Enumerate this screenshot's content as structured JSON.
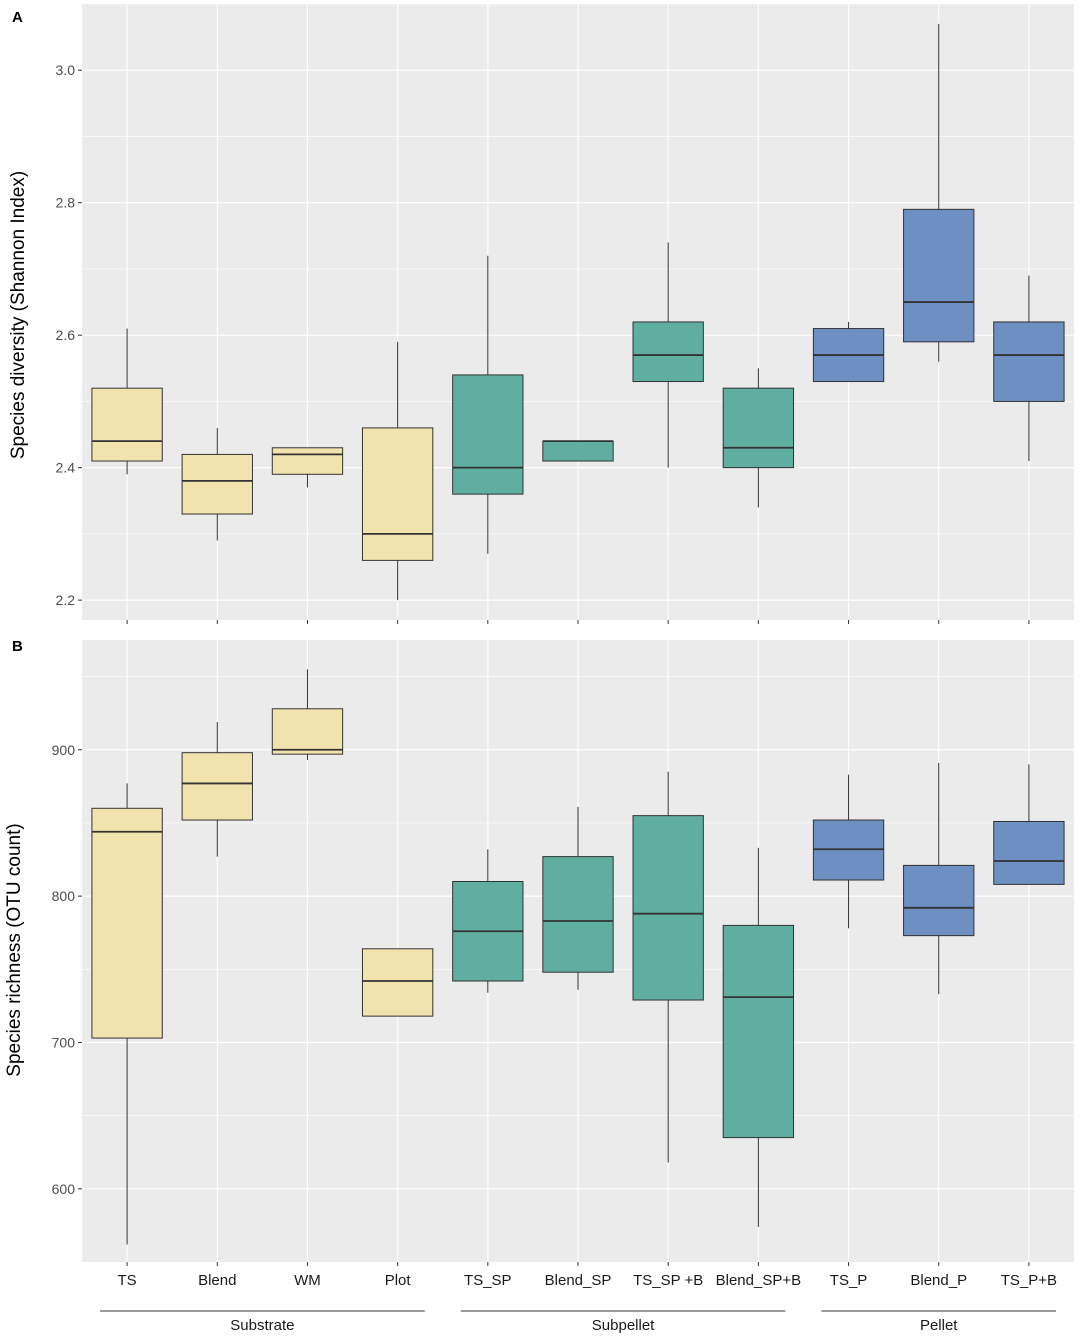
{
  "colors": {
    "substrate": "#f0e3ae",
    "subpellet": "#5fae9f",
    "pellet": "#6e8fc2",
    "panel_bg": "#ebebeb",
    "grid": "#ffffff",
    "box_line": "#333333"
  },
  "categories": [
    "TS",
    "Blend",
    "WM",
    "Plot",
    "TS_SP",
    "Blend_SP",
    "TS_SP +B",
    "Blend_SP+B",
    "TS_P",
    "Blend_P",
    "TS_P+B"
  ],
  "category_groups": [
    "substrate",
    "substrate",
    "substrate",
    "substrate",
    "subpellet",
    "subpellet",
    "subpellet",
    "subpellet",
    "pellet",
    "pellet",
    "pellet"
  ],
  "groups": [
    {
      "key": "substrate",
      "label": "Substrate",
      "first": 0,
      "last": 3
    },
    {
      "key": "subpellet",
      "label": "Subpellet",
      "first": 4,
      "last": 7
    },
    {
      "key": "pellet",
      "label": "Pellet",
      "first": 8,
      "last": 10
    }
  ],
  "chart_data": [
    {
      "type": "box",
      "panel": "A",
      "ylabel": "Species diversity (Shannon Index)",
      "ylim": [
        2.17,
        3.1
      ],
      "yticks": [
        2.2,
        2.4,
        2.6,
        2.8,
        3.0
      ],
      "ytick_labels": [
        "2.2",
        "2.4",
        "2.6",
        "2.8",
        "3.0"
      ],
      "boxes": [
        {
          "whisker_low": 2.39,
          "q1": 2.41,
          "median": 2.44,
          "q3": 2.52,
          "whisker_high": 2.61
        },
        {
          "whisker_low": 2.29,
          "q1": 2.33,
          "median": 2.38,
          "q3": 2.42,
          "whisker_high": 2.46
        },
        {
          "whisker_low": 2.37,
          "q1": 2.39,
          "median": 2.42,
          "q3": 2.43,
          "whisker_high": 2.43
        },
        {
          "whisker_low": 2.2,
          "q1": 2.26,
          "median": 2.3,
          "q3": 2.46,
          "whisker_high": 2.59
        },
        {
          "whisker_low": 2.27,
          "q1": 2.36,
          "median": 2.4,
          "q3": 2.54,
          "whisker_high": 2.72
        },
        {
          "whisker_low": 2.41,
          "q1": 2.41,
          "median": 2.44,
          "q3": 2.44,
          "whisker_high": 2.44
        },
        {
          "whisker_low": 2.4,
          "q1": 2.53,
          "median": 2.57,
          "q3": 2.62,
          "whisker_high": 2.74
        },
        {
          "whisker_low": 2.34,
          "q1": 2.4,
          "median": 2.43,
          "q3": 2.52,
          "whisker_high": 2.55
        },
        {
          "whisker_low": 2.53,
          "q1": 2.53,
          "median": 2.57,
          "q3": 2.61,
          "whisker_high": 2.62
        },
        {
          "whisker_low": 2.56,
          "q1": 2.59,
          "median": 2.65,
          "q3": 2.79,
          "whisker_high": 3.07
        },
        {
          "whisker_low": 2.41,
          "q1": 2.5,
          "median": 2.57,
          "q3": 2.62,
          "whisker_high": 2.69
        }
      ]
    },
    {
      "type": "box",
      "panel": "B",
      "ylabel": "Species richness (OTU count)",
      "ylim": [
        550,
        975
      ],
      "yticks": [
        600,
        700,
        800,
        900
      ],
      "ytick_labels": [
        "600",
        "700",
        "800",
        "900"
      ],
      "boxes": [
        {
          "whisker_low": 562,
          "q1": 703,
          "median": 844,
          "q3": 860,
          "whisker_high": 877
        },
        {
          "whisker_low": 827,
          "q1": 852,
          "median": 877,
          "q3": 898,
          "whisker_high": 919
        },
        {
          "whisker_low": 893,
          "q1": 897,
          "median": 900,
          "q3": 928,
          "whisker_high": 955
        },
        {
          "whisker_low": 718,
          "q1": 718,
          "median": 742,
          "q3": 764,
          "whisker_high": 764
        },
        {
          "whisker_low": 734,
          "q1": 742,
          "median": 776,
          "q3": 810,
          "whisker_high": 832
        },
        {
          "whisker_low": 736,
          "q1": 748,
          "median": 783,
          "q3": 827,
          "whisker_high": 861
        },
        {
          "whisker_low": 618,
          "q1": 729,
          "median": 788,
          "q3": 855,
          "whisker_high": 885
        },
        {
          "whisker_low": 574,
          "q1": 635,
          "median": 731,
          "q3": 780,
          "whisker_high": 833
        },
        {
          "whisker_low": 778,
          "q1": 811,
          "median": 832,
          "q3": 852,
          "whisker_high": 883
        },
        {
          "whisker_low": 733,
          "q1": 773,
          "median": 792,
          "q3": 821,
          "whisker_high": 891
        },
        {
          "whisker_low": 808,
          "q1": 808,
          "median": 824,
          "q3": 851,
          "whisker_high": 890
        }
      ]
    }
  ]
}
